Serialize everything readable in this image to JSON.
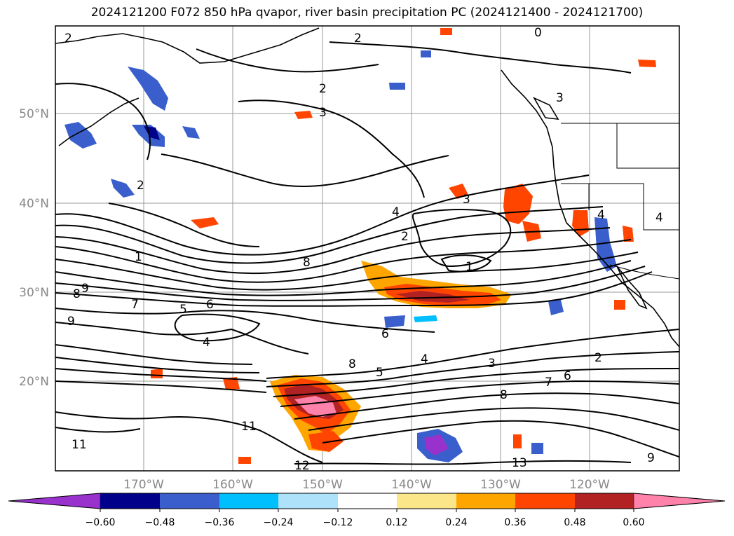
{
  "title": "2024121200 F072 850 hPa qvapor, river basin precipitation PC (2024121400 - 2024121700)",
  "lat_labels": [
    "50°N",
    "40°N",
    "30°N",
    "20°N"
  ],
  "lon_labels": [
    "170°W",
    "160°W",
    "150°W",
    "140°W",
    "130°W",
    "120°W"
  ],
  "colorbar": {
    "ticks": [
      "−0.60",
      "−0.48",
      "−0.36",
      "−0.24",
      "−0.12",
      "0.12",
      "0.24",
      "0.36",
      "0.48",
      "0.60"
    ],
    "colors": [
      "#9932cc",
      "#00008b",
      "#3a5fcd",
      "#00bfff",
      "#ade2fa",
      "#ffffff",
      "#fce68a",
      "#ffa500",
      "#ff4500",
      "#b22222",
      "#ff82ab"
    ]
  },
  "contour_labels": [
    "2",
    "0",
    "2",
    "2",
    "3",
    "3",
    "2",
    "1",
    "8",
    "9",
    "7",
    "5",
    "6",
    "9",
    "8",
    "4",
    "4",
    "2",
    "1",
    "6",
    "8",
    "5",
    "4",
    "3",
    "2",
    "7",
    "6",
    "8",
    "11",
    "11",
    "12",
    "13",
    "9",
    "4",
    "4",
    "3"
  ],
  "colors": {
    "contour": "#000000",
    "grid": "#999999",
    "axis_label": "#888888"
  }
}
